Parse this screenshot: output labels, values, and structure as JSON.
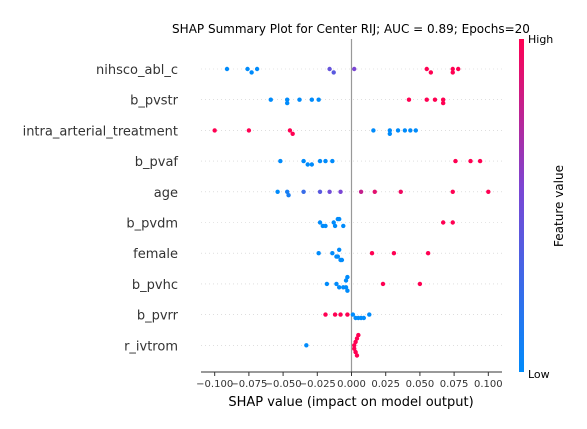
{
  "chart_data": {
    "type": "scatter",
    "title": "SHAP Summary Plot for Center RIJ; AUC = 0.89; Epochs=20",
    "xlabel": "SHAP value (impact on model output)",
    "ylabel": "",
    "xlim": [
      -0.11,
      0.11
    ],
    "x_ticks": [
      -0.1,
      -0.075,
      -0.05,
      -0.025,
      0.0,
      0.025,
      0.05,
      0.075,
      0.1
    ],
    "x_tick_labels": [
      "−0.100",
      "−0.075",
      "−0.050",
      "−0.025",
      "0.000",
      "0.025",
      "0.050",
      "0.075",
      "0.100"
    ],
    "colorbar": {
      "label": "Feature value",
      "high_label": "High",
      "low_label": "Low",
      "low_color": "#008bfb",
      "high_color": "#ff0052"
    },
    "features": [
      {
        "name": "nihsco_abl_c",
        "points": [
          {
            "x": -0.091,
            "v": 0.0
          },
          {
            "x": -0.076,
            "v": 0.0
          },
          {
            "x": -0.073,
            "v": 0.0
          },
          {
            "x": -0.069,
            "v": 0.0
          },
          {
            "x": -0.016,
            "v": 0.45
          },
          {
            "x": -0.013,
            "v": 0.4
          },
          {
            "x": 0.002,
            "v": 0.55
          },
          {
            "x": 0.055,
            "v": 1.0
          },
          {
            "x": 0.058,
            "v": 1.0
          },
          {
            "x": 0.074,
            "v": 1.0
          },
          {
            "x": 0.074,
            "v": 1.0
          },
          {
            "x": 0.078,
            "v": 1.0
          }
        ]
      },
      {
        "name": "b_pvstr",
        "points": [
          {
            "x": -0.059,
            "v": 0.0
          },
          {
            "x": -0.047,
            "v": 0.0
          },
          {
            "x": -0.047,
            "v": 0.0
          },
          {
            "x": -0.038,
            "v": 0.0
          },
          {
            "x": -0.029,
            "v": 0.0
          },
          {
            "x": -0.024,
            "v": 0.0
          },
          {
            "x": 0.042,
            "v": 1.0
          },
          {
            "x": 0.055,
            "v": 1.0
          },
          {
            "x": 0.061,
            "v": 1.0
          },
          {
            "x": 0.067,
            "v": 1.0
          },
          {
            "x": 0.067,
            "v": 1.0
          }
        ]
      },
      {
        "name": "intra_arterial_treatment",
        "points": [
          {
            "x": -0.1,
            "v": 1.0
          },
          {
            "x": -0.075,
            "v": 1.0
          },
          {
            "x": -0.045,
            "v": 1.0
          },
          {
            "x": -0.043,
            "v": 1.0
          },
          {
            "x": 0.016,
            "v": 0.0
          },
          {
            "x": 0.028,
            "v": 0.0
          },
          {
            "x": 0.028,
            "v": 0.0
          },
          {
            "x": 0.034,
            "v": 0.0
          },
          {
            "x": 0.039,
            "v": 0.0
          },
          {
            "x": 0.043,
            "v": 0.0
          },
          {
            "x": 0.047,
            "v": 0.0
          }
        ]
      },
      {
        "name": "b_pvaf",
        "points": [
          {
            "x": -0.052,
            "v": 0.0
          },
          {
            "x": -0.035,
            "v": 0.0
          },
          {
            "x": -0.032,
            "v": 0.0
          },
          {
            "x": -0.029,
            "v": 0.0
          },
          {
            "x": -0.023,
            "v": 0.0
          },
          {
            "x": -0.019,
            "v": 0.0
          },
          {
            "x": -0.014,
            "v": 0.0
          },
          {
            "x": 0.076,
            "v": 1.0
          },
          {
            "x": 0.087,
            "v": 1.0
          },
          {
            "x": 0.094,
            "v": 1.0
          }
        ]
      },
      {
        "name": "age",
        "points": [
          {
            "x": -0.054,
            "v": 0.0
          },
          {
            "x": -0.047,
            "v": 0.1
          },
          {
            "x": -0.046,
            "v": 0.1
          },
          {
            "x": -0.035,
            "v": 0.25
          },
          {
            "x": -0.023,
            "v": 0.4
          },
          {
            "x": -0.016,
            "v": 0.5
          },
          {
            "x": -0.008,
            "v": 0.55
          },
          {
            "x": 0.007,
            "v": 0.8
          },
          {
            "x": 0.017,
            "v": 0.9
          },
          {
            "x": 0.036,
            "v": 0.95
          },
          {
            "x": 0.074,
            "v": 1.0
          },
          {
            "x": 0.1,
            "v": 1.0
          }
        ]
      },
      {
        "name": "b_pvdm",
        "points": [
          {
            "x": -0.023,
            "v": 0.0
          },
          {
            "x": -0.021,
            "v": 0.0
          },
          {
            "x": -0.019,
            "v": 0.0
          },
          {
            "x": -0.013,
            "v": 0.0
          },
          {
            "x": -0.01,
            "v": 0.0
          },
          {
            "x": -0.009,
            "v": 0.0
          },
          {
            "x": -0.006,
            "v": 0.0
          },
          {
            "x": -0.012,
            "v": 0.0
          },
          {
            "x": 0.067,
            "v": 1.0
          },
          {
            "x": 0.074,
            "v": 1.0
          }
        ]
      },
      {
        "name": "female",
        "points": [
          {
            "x": -0.024,
            "v": 0.0
          },
          {
            "x": -0.014,
            "v": 0.0
          },
          {
            "x": -0.011,
            "v": 0.0
          },
          {
            "x": -0.009,
            "v": 0.0
          },
          {
            "x": -0.007,
            "v": 0.0
          },
          {
            "x": -0.01,
            "v": 0.0
          },
          {
            "x": -0.008,
            "v": 0.0
          },
          {
            "x": 0.015,
            "v": 1.0
          },
          {
            "x": 0.031,
            "v": 1.0
          },
          {
            "x": 0.056,
            "v": 1.0
          }
        ]
      },
      {
        "name": "b_pvhc",
        "points": [
          {
            "x": -0.018,
            "v": 0.0
          },
          {
            "x": -0.011,
            "v": 0.0
          },
          {
            "x": -0.009,
            "v": 0.0
          },
          {
            "x": -0.006,
            "v": 0.0
          },
          {
            "x": -0.004,
            "v": 0.0
          },
          {
            "x": -0.003,
            "v": 0.0
          },
          {
            "x": -0.004,
            "v": 0.0
          },
          {
            "x": -0.003,
            "v": 0.0
          },
          {
            "x": 0.023,
            "v": 1.0
          },
          {
            "x": 0.05,
            "v": 1.0
          }
        ]
      },
      {
        "name": "b_pvrr",
        "points": [
          {
            "x": -0.019,
            "v": 1.0
          },
          {
            "x": -0.012,
            "v": 1.0
          },
          {
            "x": -0.008,
            "v": 1.0
          },
          {
            "x": -0.003,
            "v": 1.0
          },
          {
            "x": 0.001,
            "v": 0.0
          },
          {
            "x": 0.003,
            "v": 0.0
          },
          {
            "x": 0.005,
            "v": 0.0
          },
          {
            "x": 0.007,
            "v": 0.0
          },
          {
            "x": 0.009,
            "v": 0.0
          },
          {
            "x": 0.013,
            "v": 0.0
          }
        ]
      },
      {
        "name": "r_ivtrom",
        "points": [
          {
            "x": -0.033,
            "v": 0.0
          },
          {
            "x": 0.002,
            "v": 1.0
          },
          {
            "x": 0.003,
            "v": 1.0
          },
          {
            "x": 0.004,
            "v": 1.0
          },
          {
            "x": 0.005,
            "v": 1.0
          },
          {
            "x": 0.003,
            "v": 1.0
          },
          {
            "x": 0.002,
            "v": 1.0
          },
          {
            "x": 0.004,
            "v": 1.0
          }
        ]
      }
    ]
  }
}
